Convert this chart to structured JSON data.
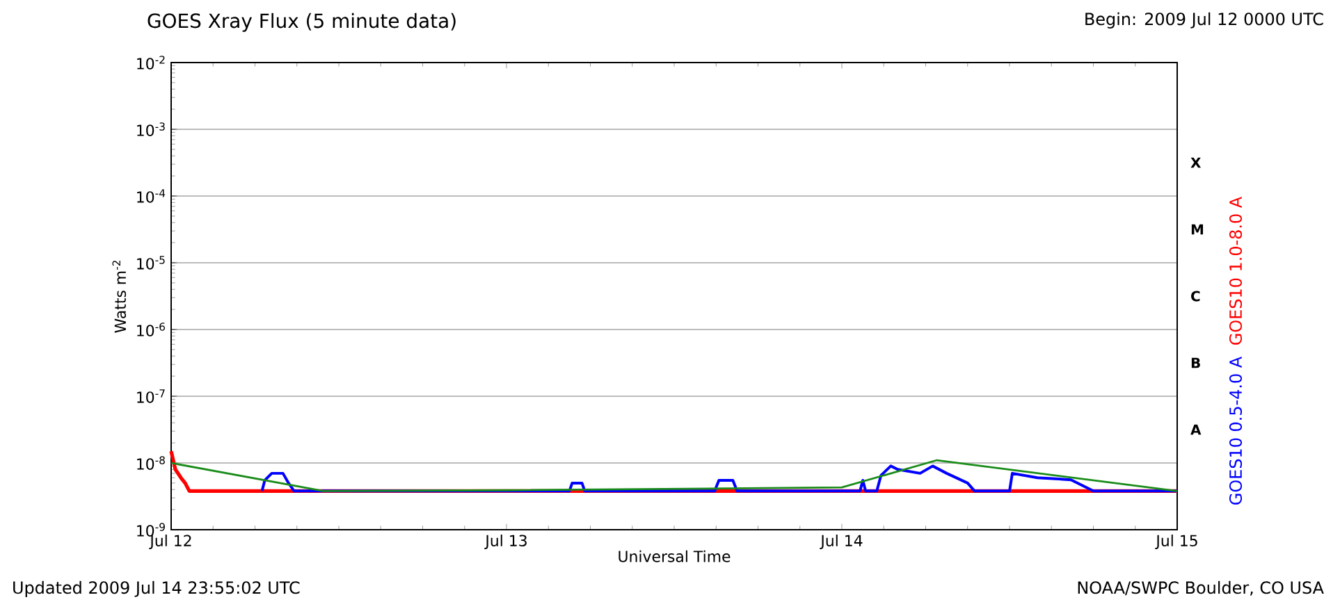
{
  "chart_data": {
    "type": "line",
    "title": "GOES Xray Flux (5 minute data)",
    "xlabel": "Universal Time",
    "ylabel": "Watts m$^{-2}$",
    "annotations": [
      "Begin:  2009 Jul 12 0000 UTC",
      "Updated 2009 Jul 14 23:55:02 UTC",
      "NOAA/SWPC Boulder, CO USA",
      "A",
      "B",
      "C",
      "M",
      "X"
    ],
    "log": true,
    "grid": "y",
    "legend": "right",
    "xlim": [
      "2009-07-12T00:00",
      "2009-07-15T00:00"
    ],
    "xticks": [
      {
        "value": "2009-07-12",
        "label": "Jul 12"
      },
      {
        "value": "2009-07-13",
        "label": "Jul 13"
      },
      {
        "value": "2009-07-14",
        "label": "Jul 14"
      },
      {
        "value": "2009-07-15",
        "label": "Jul 15"
      }
    ],
    "ylim": [
      1e-09,
      0.01
    ],
    "yticks": [
      {
        "value": 1e-09,
        "label": "10$^{-9}$"
      },
      {
        "value": 1e-08,
        "label": "10$^{-8}$"
      },
      {
        "value": 1e-07,
        "label": "10$^{-7}$"
      },
      {
        "value": 1e-06,
        "label": "10$^{-6}$"
      },
      {
        "value": 1e-05,
        "label": "10$^{-5}$"
      },
      {
        "value": 0.0001,
        "label": "10$^{-4}$"
      },
      {
        "value": 0.001,
        "label": "10$^{-3}$"
      },
      {
        "value": 0.01,
        "label": "10$^{-2}$"
      }
    ],
    "series": [
      {
        "name": "GOES10 1.0-8.0 A",
        "color": "#ff0000",
        "x": [
          "2009-07-12T00:00",
          "2009-07-12T00:18",
          "2009-07-12T00:42",
          "2009-07-12T01:00",
          "2009-07-12T01:18",
          "2009-07-15T00:00"
        ],
        "values": [
          1.5e-08,
          8e-09,
          6e-09,
          5e-09,
          3.8e-09,
          3.8e-09
        ]
      },
      {
        "name": "GOES10 0.5-4.0 A",
        "color": "#0000ff",
        "x": [
          "2009-07-12T06:30",
          "2009-07-12T06:42",
          "2009-07-12T07:12",
          "2009-07-12T08:00",
          "2009-07-12T08:24",
          "2009-07-12T08:48",
          "2009-07-13T04:30",
          "2009-07-13T04:42",
          "2009-07-13T05:24",
          "2009-07-13T05:36",
          "2009-07-13T14:54",
          "2009-07-13T15:12",
          "2009-07-13T16:12",
          "2009-07-13T16:30",
          "2009-07-14T01:18",
          "2009-07-14T01:30",
          "2009-07-14T01:42",
          "2009-07-14T02:30",
          "2009-07-14T02:48",
          "2009-07-14T03:30",
          "2009-07-14T04:00",
          "2009-07-14T05:36",
          "2009-07-14T06:30",
          "2009-07-14T07:30",
          "2009-07-14T09:00",
          "2009-07-14T09:30",
          "2009-07-14T12:00",
          "2009-07-14T12:12",
          "2009-07-14T14:00",
          "2009-07-14T16:24",
          "2009-07-14T18:00",
          "2009-07-15T00:00"
        ],
        "values": [
          3.8e-09,
          5.5e-09,
          7e-09,
          7e-09,
          5e-09,
          3.8e-09,
          3.8e-09,
          5e-09,
          5e-09,
          3.8e-09,
          3.8e-09,
          5.5e-09,
          5.5e-09,
          3.8e-09,
          3.8e-09,
          5.5e-09,
          3.8e-09,
          3.8e-09,
          6.5e-09,
          9e-09,
          8e-09,
          7e-09,
          9e-09,
          7e-09,
          5e-09,
          3.8e-09,
          3.8e-09,
          7e-09,
          6e-09,
          5.6e-09,
          3.8e-09,
          3.8e-09
        ]
      },
      {
        "color": "#1a8c1a",
        "x": [
          "2009-07-12T00:00",
          "2009-07-12T10:54",
          "2009-07-13T00:00",
          "2009-07-14T00:00",
          "2009-07-14T06:48",
          "2009-07-15T00:00"
        ],
        "values": [
          1e-08,
          3.8e-09,
          3.9e-09,
          4.3e-09,
          1.1e-08,
          3.8e-09
        ]
      }
    ]
  }
}
